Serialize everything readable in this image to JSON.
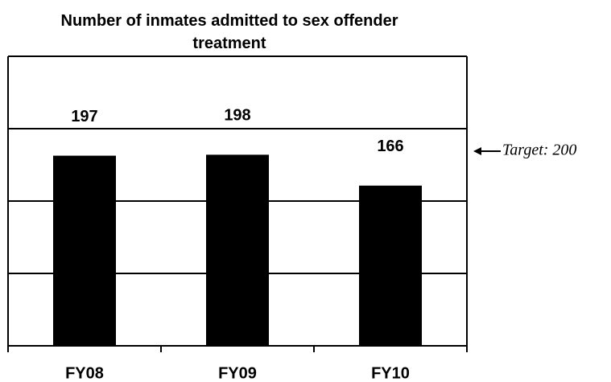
{
  "chart_data": {
    "type": "bar",
    "title": "Number of inmates admitted to sex offender treatment",
    "categories": [
      "FY08",
      "FY09",
      "FY10"
    ],
    "values": [
      197,
      198,
      166
    ],
    "color": "#000000",
    "ylim": [
      0,
      300
    ],
    "yticks": [
      0,
      75,
      150,
      225,
      300
    ],
    "grid": true,
    "target": {
      "value": 200,
      "label": "Target: 200"
    }
  }
}
